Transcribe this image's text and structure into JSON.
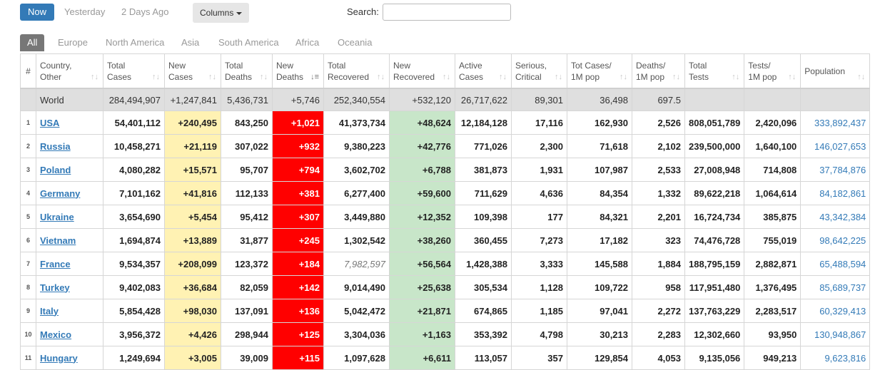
{
  "day_tabs": [
    {
      "label": "Now",
      "active": true
    },
    {
      "label": "Yesterday",
      "active": false
    },
    {
      "label": "2 Days Ago",
      "active": false
    }
  ],
  "columns_button": "Columns",
  "search": {
    "label": "Search:",
    "value": "",
    "placeholder": ""
  },
  "regions": [
    {
      "label": "All",
      "active": true
    },
    {
      "label": "Europe",
      "active": false
    },
    {
      "label": "North America",
      "active": false
    },
    {
      "label": "Asia",
      "active": false
    },
    {
      "label": "South America",
      "active": false
    },
    {
      "label": "Africa",
      "active": false
    },
    {
      "label": "Oceania",
      "active": false
    }
  ],
  "table": {
    "headers": [
      {
        "key": "num",
        "l1": "#",
        "l2": "",
        "sort": false
      },
      {
        "key": "country",
        "l1": "Country,",
        "l2": "Other",
        "sort": true
      },
      {
        "key": "total_cases",
        "l1": "Total",
        "l2": "Cases",
        "sort": true
      },
      {
        "key": "new_cases",
        "l1": "New",
        "l2": "Cases",
        "sort": true
      },
      {
        "key": "total_deaths",
        "l1": "Total",
        "l2": "Deaths",
        "sort": true
      },
      {
        "key": "new_deaths",
        "l1": "New",
        "l2": "Deaths",
        "sort": true,
        "active_sort": true
      },
      {
        "key": "total_recovered",
        "l1": "Total",
        "l2": "Recovered",
        "sort": true
      },
      {
        "key": "new_recovered",
        "l1": "New",
        "l2": "Recovered",
        "sort": true
      },
      {
        "key": "active_cases",
        "l1": "Active",
        "l2": "Cases",
        "sort": true
      },
      {
        "key": "serious",
        "l1": "Serious,",
        "l2": "Critical",
        "sort": true
      },
      {
        "key": "cases_per_m",
        "l1": "Tot Cases/",
        "l2": "1M pop",
        "sort": true
      },
      {
        "key": "deaths_per_m",
        "l1": "Deaths/",
        "l2": "1M pop",
        "sort": true
      },
      {
        "key": "total_tests",
        "l1": "Total",
        "l2": "Tests",
        "sort": true
      },
      {
        "key": "tests_per_m",
        "l1": "Tests/",
        "l2": "1M pop",
        "sort": true
      },
      {
        "key": "population",
        "l1": "Population",
        "l2": "",
        "sort": true
      }
    ],
    "world": [
      "",
      "World",
      "284,494,907",
      "+1,247,841",
      "5,436,731",
      "+5,746",
      "252,340,554",
      "+532,120",
      "26,717,622",
      "89,301",
      "36,498",
      "697.5",
      "",
      "",
      ""
    ],
    "rows": [
      [
        "1",
        "USA",
        "54,401,112",
        "+240,495",
        "843,250",
        "+1,021",
        "41,373,734",
        "+48,624",
        "12,184,128",
        "17,116",
        "162,930",
        "2,526",
        "808,051,789",
        "2,420,096",
        "333,892,437"
      ],
      [
        "2",
        "Russia",
        "10,458,271",
        "+21,119",
        "307,022",
        "+932",
        "9,380,223",
        "+42,776",
        "771,026",
        "2,300",
        "71,618",
        "2,102",
        "239,500,000",
        "1,640,100",
        "146,027,653"
      ],
      [
        "3",
        "Poland",
        "4,080,282",
        "+15,571",
        "95,707",
        "+794",
        "3,602,702",
        "+6,788",
        "381,873",
        "1,931",
        "107,987",
        "2,533",
        "27,008,948",
        "714,808",
        "37,784,876"
      ],
      [
        "4",
        "Germany",
        "7,101,162",
        "+41,816",
        "112,133",
        "+381",
        "6,277,400",
        "+59,600",
        "711,629",
        "4,636",
        "84,354",
        "1,332",
        "89,622,218",
        "1,064,614",
        "84,182,861"
      ],
      [
        "5",
        "Ukraine",
        "3,654,690",
        "+5,454",
        "95,412",
        "+307",
        "3,449,880",
        "+12,352",
        "109,398",
        "177",
        "84,321",
        "2,201",
        "16,724,734",
        "385,875",
        "43,342,384"
      ],
      [
        "6",
        "Vietnam",
        "1,694,874",
        "+13,889",
        "31,877",
        "+245",
        "1,302,542",
        "+38,260",
        "360,455",
        "7,273",
        "17,182",
        "323",
        "74,476,728",
        "755,019",
        "98,642,225"
      ],
      [
        "7",
        "France",
        "9,534,357",
        "+208,099",
        "123,372",
        "+184",
        "7,982,597",
        "+56,564",
        "1,428,388",
        "3,333",
        "145,588",
        "1,884",
        "188,795,159",
        "2,882,871",
        "65,488,594"
      ],
      [
        "8",
        "Turkey",
        "9,402,083",
        "+36,684",
        "82,059",
        "+142",
        "9,014,490",
        "+25,638",
        "305,534",
        "1,128",
        "109,722",
        "958",
        "117,951,480",
        "1,376,495",
        "85,689,737"
      ],
      [
        "9",
        "Italy",
        "5,854,428",
        "+98,030",
        "137,091",
        "+136",
        "5,042,472",
        "+21,871",
        "674,865",
        "1,185",
        "97,041",
        "2,272",
        "137,763,229",
        "2,283,517",
        "60,329,413"
      ],
      [
        "10",
        "Mexico",
        "3,956,372",
        "+4,426",
        "298,944",
        "+125",
        "3,304,036",
        "+1,163",
        "353,392",
        "4,798",
        "30,213",
        "2,283",
        "12,302,660",
        "93,950",
        "130,948,867"
      ],
      [
        "11",
        "Hungary",
        "1,249,694",
        "+3,005",
        "39,009",
        "+115",
        "1,097,628",
        "+6,611",
        "113,057",
        "357",
        "129,854",
        "4,053",
        "9,135,056",
        "949,213",
        "9,623,816"
      ]
    ],
    "italic_cells": [
      {
        "row": 6,
        "col": 6
      }
    ]
  }
}
